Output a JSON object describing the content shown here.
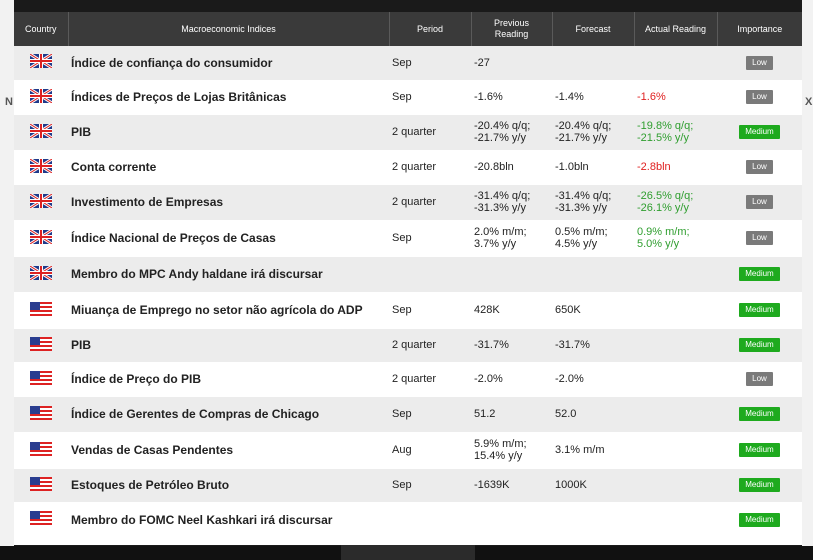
{
  "background_edge_text": {
    "left_letter": "N",
    "right_letter": "X"
  },
  "colors": {
    "header_bg": "#3a3a3a",
    "low_badge": "#7a7a7a",
    "medium_badge": "#1eaa1e",
    "positive": "#2f9e2f",
    "negative": "#e02020"
  },
  "headers": {
    "country": "Country",
    "indices": "Macroeconomic Indices",
    "period": "Period",
    "previous": "Previous Reading",
    "forecast": "Forecast",
    "actual": "Actual Reading",
    "importance": "Importance"
  },
  "rows": [
    {
      "flag": "uk-flag-icon",
      "name": "Índice de confiança do consumidor",
      "period": "Sep",
      "previous": "-27",
      "forecast": "",
      "actual": "",
      "actual_color": "",
      "importance": "Low"
    },
    {
      "flag": "uk-flag-icon",
      "name": "Índices de Preços de Lojas Britânicas",
      "period": "Sep",
      "previous": "-1.6%",
      "forecast": "-1.4%",
      "actual": "-1.6%",
      "actual_color": "red",
      "importance": "Low"
    },
    {
      "flag": "uk-flag-icon",
      "name": "PIB",
      "period": "2 quarter",
      "previous": "-20.4% q/q;\n-21.7% y/y",
      "forecast": "-20.4% q/q;\n-21.7% y/y",
      "actual": "-19.8% q/q;\n-21.5% y/y",
      "actual_color": "green",
      "importance": "Medium"
    },
    {
      "flag": "uk-flag-icon",
      "name": "Conta corrente",
      "period": "2 quarter",
      "previous": "-20.8bln",
      "forecast": "-1.0bln",
      "actual": "-2.8bln",
      "actual_color": "red",
      "importance": "Low"
    },
    {
      "flag": "uk-flag-icon",
      "name": "Investimento de Empresas",
      "period": "2 quarter",
      "previous": "-31.4% q/q;\n-31.3% y/y",
      "forecast": "-31.4% q/q;\n-31.3% y/y",
      "actual": "-26.5% q/q;\n-26.1% y/y",
      "actual_color": "green",
      "importance": "Low"
    },
    {
      "flag": "uk-flag-icon",
      "name": "Índice Nacional de Preços de Casas",
      "period": "Sep",
      "previous": "2.0% m/m;\n3.7% y/y",
      "forecast": "0.5% m/m;\n4.5% y/y",
      "actual": "0.9% m/m;\n5.0% y/y",
      "actual_color": "green",
      "importance": "Low"
    },
    {
      "flag": "uk-flag-icon",
      "name": "Membro do MPC Andy haldane irá discursar",
      "period": "",
      "previous": "",
      "forecast": "",
      "actual": "",
      "actual_color": "",
      "importance": "Medium"
    },
    {
      "flag": "us-flag-icon",
      "name": "Miuança de Emprego no setor não agrícola do ADP",
      "period": "Sep",
      "previous": "428K",
      "forecast": "650K",
      "actual": "",
      "actual_color": "",
      "importance": "Medium"
    },
    {
      "flag": "us-flag-icon",
      "name": "PIB",
      "period": "2 quarter",
      "previous": "-31.7%",
      "forecast": "-31.7%",
      "actual": "",
      "actual_color": "",
      "importance": "Medium"
    },
    {
      "flag": "us-flag-icon",
      "name": "Índice de Preço do PIB",
      "period": "2 quarter",
      "previous": "-2.0%",
      "forecast": "-2.0%",
      "actual": "",
      "actual_color": "",
      "importance": "Low"
    },
    {
      "flag": "us-flag-icon",
      "name": "Índice de Gerentes de Compras de Chicago",
      "period": "Sep",
      "previous": "51.2",
      "forecast": "52.0",
      "actual": "",
      "actual_color": "",
      "importance": "Medium"
    },
    {
      "flag": "us-flag-icon",
      "name": "Vendas de Casas Pendentes",
      "period": "Aug",
      "previous": "5.9% m/m;\n15.4% y/y",
      "forecast": "3.1% m/m",
      "actual": "",
      "actual_color": "",
      "importance": "Medium"
    },
    {
      "flag": "us-flag-icon",
      "name": "Estoques de Petróleo Bruto",
      "period": "Sep",
      "previous": "-1639K",
      "forecast": "1000K",
      "actual": "",
      "actual_color": "",
      "importance": "Medium"
    },
    {
      "flag": "us-flag-icon",
      "name": "Membro do FOMC Neel Kashkari irá discursar",
      "period": "",
      "previous": "",
      "forecast": "",
      "actual": "",
      "actual_color": "",
      "importance": "Medium"
    }
  ]
}
